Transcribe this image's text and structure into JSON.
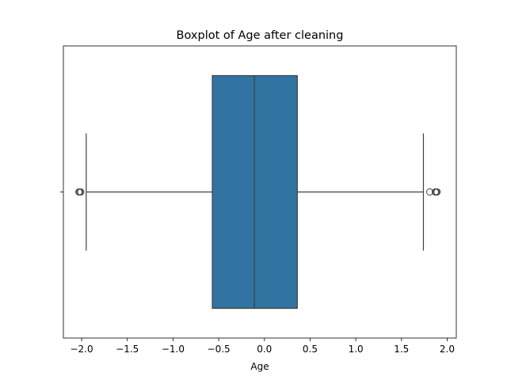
{
  "chart_data": {
    "type": "boxplot",
    "title": "Boxplot of Age after cleaning",
    "xlabel": "Age",
    "ylabel": "",
    "xlim": [
      -2.2,
      2.1
    ],
    "xticks": [
      -2.0,
      -1.5,
      -1.0,
      -0.5,
      0.0,
      0.5,
      1.0,
      1.5,
      2.0
    ],
    "xtick_labels": [
      "−2.0",
      "−1.5",
      "−1.0",
      "−0.5",
      "0.0",
      "0.5",
      "1.0",
      "1.5",
      "2.0"
    ],
    "orientation": "horizontal",
    "grid": false,
    "box": {
      "whisker_low": -1.95,
      "q1": -0.57,
      "median": -0.11,
      "q3": 0.36,
      "whisker_high": 1.74,
      "outliers": [
        -2.03,
        -2.02,
        -2.01,
        1.81,
        1.87,
        1.88,
        1.89
      ],
      "fill_color": "#3274a1",
      "line_color": "#3f3f3f"
    }
  }
}
